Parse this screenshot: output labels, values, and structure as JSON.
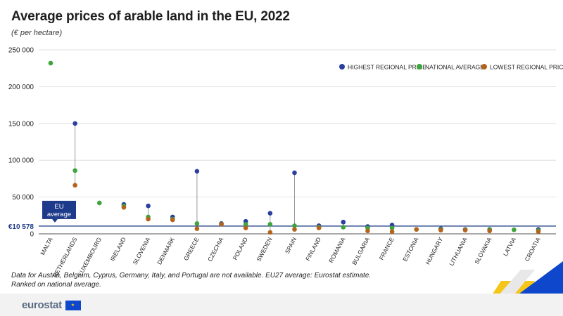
{
  "title": "Average prices of arable land in the EU, 2022",
  "subtitle": "(€ per hectare)",
  "note_lines": [
    "Data for Austria, Belgium, Cyprus, Germany, Italy, and Portugal are not available. EU27 average: Eurostat estimate.",
    "Ranked on national average."
  ],
  "logo_text": "eurostat",
  "colors": {
    "highest": "#2a3f9e",
    "national": "#3ea43b",
    "lowest": "#b5631c",
    "eu_line": "#2e4a8c",
    "eu_box": "#1e3a8a"
  },
  "chart_data": {
    "type": "scatter",
    "title": "Average prices of arable land in the EU, 2022",
    "ylabel": "€ per hectare",
    "ylim": [
      0,
      250000
    ],
    "yticks": [
      0,
      50000,
      100000,
      150000,
      200000,
      250000
    ],
    "ytick_labels": [
      "0",
      "50 000",
      "100 000",
      "150 000",
      "200 000",
      "250 000"
    ],
    "legend_position": "top-right",
    "categories": [
      "MALTA",
      "NETHERLANDS",
      "LUXEMBOURG",
      "IRELAND",
      "SLOVENIA",
      "DENMARK",
      "GREECE",
      "CZECHIA",
      "POLAND",
      "SWEDEN",
      "SPAIN",
      "FINLAND",
      "ROMANIA",
      "BULGARIA",
      "FRANCE",
      "ESTONIA",
      "HUNGARY",
      "LITHUANIA",
      "SLOVAKIA",
      "LATVIA",
      "CROATIA"
    ],
    "series": [
      {
        "name": "HIGHEST REGIONAL PRICE",
        "key": "highest",
        "values": [
          null,
          150000,
          null,
          40000,
          38000,
          23000,
          85000,
          14000,
          17000,
          28000,
          83000,
          11000,
          16000,
          10000,
          12000,
          null,
          7000,
          6000,
          6000,
          null,
          6000
        ]
      },
      {
        "name": "NATIONAL AVERAGE",
        "key": "national",
        "values": [
          232000,
          86000,
          42000,
          38000,
          23000,
          20000,
          14000,
          13000,
          13000,
          13000,
          11000,
          9000,
          9000,
          8000,
          8000,
          6000,
          6000,
          5500,
          5500,
          5500,
          4500
        ]
      },
      {
        "name": "LOWEST REGIONAL PRICE",
        "key": "lowest",
        "values": [
          null,
          66000,
          null,
          36000,
          20000,
          19000,
          7000,
          13000,
          8000,
          2000,
          6000,
          8000,
          null,
          4000,
          3000,
          6000,
          5000,
          5000,
          4000,
          null,
          3000
        ]
      }
    ],
    "eu_average": {
      "value": 10578,
      "label": "€10 578",
      "box_label_lines": [
        "EU",
        "average"
      ]
    }
  }
}
